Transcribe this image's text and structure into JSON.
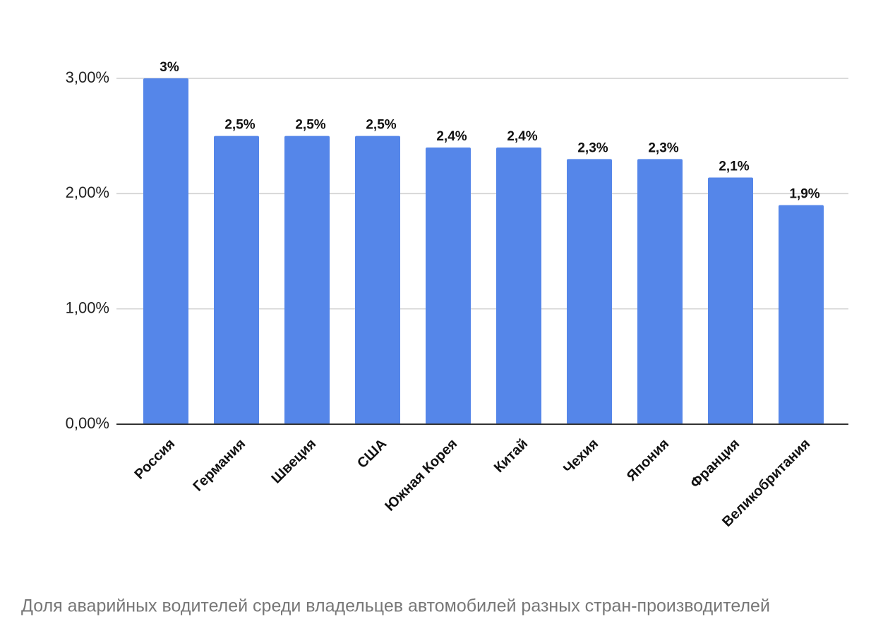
{
  "chart_data": {
    "type": "bar",
    "caption": "Доля аварийных водителей среди владельцев автомобилей разных стран-производителей",
    "categories": [
      "Россия",
      "Германия",
      "Швеция",
      "США",
      "Южная Корея",
      "Китай",
      "Чехия",
      "Япония",
      "Франция",
      "Великобритания"
    ],
    "values": [
      3,
      2.5,
      2.5,
      2.5,
      2.4,
      2.4,
      2.3,
      2.3,
      2.14,
      1.9
    ],
    "value_labels": [
      "3%",
      "2,5%",
      "2,5%",
      "2,5%",
      "2,4%",
      "2,4%",
      "2,3%",
      "2,3%",
      "2,1%",
      "1,9%"
    ],
    "color": "#5586e9",
    "ylim": [
      0,
      3
    ],
    "yticks": [
      {
        "value": 0,
        "label": "0,00%"
      },
      {
        "value": 1,
        "label": "1,00%"
      },
      {
        "value": 2,
        "label": "2,00%"
      },
      {
        "value": 3,
        "label": "3,00%"
      }
    ],
    "grid": true
  }
}
